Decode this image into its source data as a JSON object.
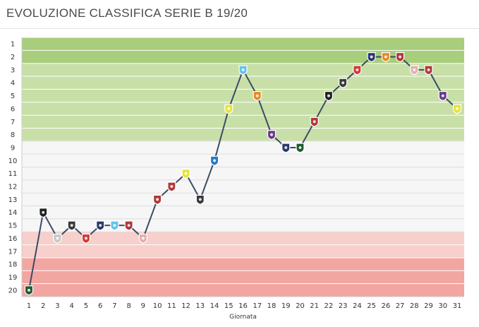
{
  "header": {
    "title": "EVOLUZIONE CLASSIFICA SERIE B 19/20"
  },
  "chart_data": {
    "type": "line",
    "title": "EVOLUZIONE CLASSIFICA SERIE B 19/20",
    "xlabel": "Giornata",
    "ylabel": "",
    "x": [
      1,
      2,
      3,
      4,
      5,
      6,
      7,
      8,
      9,
      10,
      11,
      12,
      13,
      14,
      15,
      16,
      17,
      18,
      19,
      20,
      21,
      22,
      23,
      24,
      25,
      26,
      27,
      28,
      29,
      30,
      31
    ],
    "y": [
      20,
      14,
      16,
      15,
      16,
      15,
      15,
      15,
      16,
      13,
      12,
      11,
      13,
      10,
      6,
      3,
      5,
      8,
      9,
      9,
      7,
      5,
      4,
      3,
      2,
      2,
      2,
      3,
      3,
      5,
      6
    ],
    "xlim": [
      1,
      31
    ],
    "ylim": [
      1,
      20
    ],
    "y_reversed": true,
    "grid": true,
    "line_color": "#3c4b63",
    "bands": [
      {
        "from": 1,
        "to": 2,
        "color": "#a8cd7c"
      },
      {
        "from": 3,
        "to": 8,
        "color": "#c8e0a8"
      },
      {
        "from": 9,
        "to": 15,
        "color": "#f6f6f6"
      },
      {
        "from": 16,
        "to": 17,
        "color": "#f7cfcb"
      },
      {
        "from": 18,
        "to": 20,
        "color": "#f2a6a2"
      }
    ],
    "marker_colors": [
      "#1f5a2e",
      "#222222",
      "#c8c8c8",
      "#3a3a3a",
      "#d33a35",
      "#2a3a6e",
      "#66c2ee",
      "#b0373a",
      "#e3b0b0",
      "#b03a3a",
      "#b03a3a",
      "#e8e33a",
      "#3a3a3a",
      "#2a7ac4",
      "#e8e33a",
      "#66c2ee",
      "#e88a20",
      "#6a3a8a",
      "#2a3a6e",
      "#1f5a2e",
      "#b03a3a",
      "#222222",
      "#3a3a3a",
      "#d33a35",
      "#2a3a6e",
      "#e88a20",
      "#b0373a",
      "#e3b0b0",
      "#b03a3a",
      "#6a3a8a",
      "#e8e33a"
    ]
  }
}
